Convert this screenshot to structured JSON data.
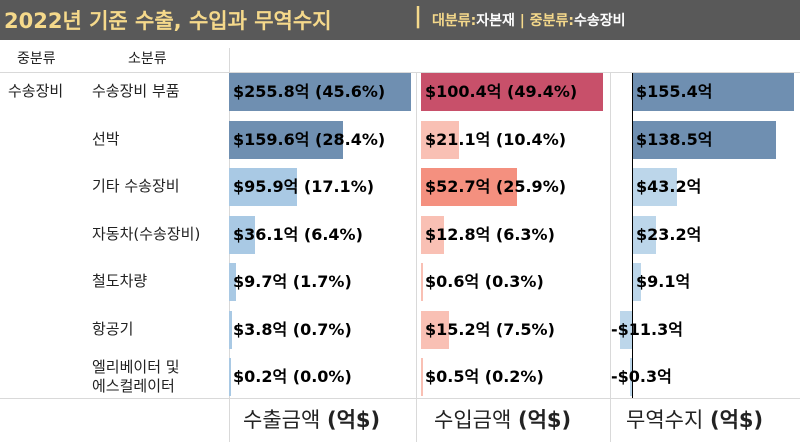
{
  "title": {
    "main": "2022년 기준 수출, 수입과 무역수지",
    "separator": "|",
    "major_key": "대분류:",
    "major_value": "자본재",
    "sub_separator": "|",
    "mid_key": "중분류:",
    "mid_value": "수송장비"
  },
  "headers": {
    "mid": "중분류",
    "sub": "소분류"
  },
  "colors": {
    "title_bg": "#595959",
    "title_text": "#f5d98b",
    "export_dark": "#6f8fb1",
    "export_light": "#a9c9e4",
    "import_dark": "#c8506a",
    "import_mid": "#f4907f",
    "import_light": "#f9c0b4",
    "trade_dark": "#6f8fb1",
    "trade_light": "#bcd6ea"
  },
  "chart_data": {
    "type": "bar",
    "mid_category": "수송장비",
    "categories": [
      "수송장비 부품",
      "선박",
      "기타 수송장비",
      "자동차(수송장비)",
      "철도차량",
      "항공기",
      "엘리베이터 및 에스컬레이터"
    ],
    "category_lines": [
      [
        "수송장비 부품"
      ],
      [
        "선박"
      ],
      [
        "기타 수송장비"
      ],
      [
        "자동차(수송장비)"
      ],
      [
        "철도차량"
      ],
      [
        "항공기"
      ],
      [
        "엘리베이터 및",
        "에스컬레이터"
      ]
    ],
    "series": [
      {
        "name": "수출금액 (억$)",
        "values": [
          255.8,
          159.6,
          95.9,
          36.1,
          9.7,
          3.8,
          0.2
        ],
        "labels": [
          "$255.8억 (45.6%)",
          "$159.6억 (28.4%)",
          "$95.9억 (17.1%)",
          "$36.1억 (6.4%)",
          "$9.7억 (1.7%)",
          "$3.8억 (0.7%)",
          "$0.2억 (0.0%)"
        ]
      },
      {
        "name": "수입금액 (억$)",
        "values": [
          100.4,
          21.1,
          52.7,
          12.8,
          0.6,
          15.2,
          0.5
        ],
        "labels": [
          "$100.4억 (49.4%)",
          "$21.1억 (10.4%)",
          "$52.7억 (25.9%)",
          "$12.8억 (6.3%)",
          "$0.6억 (0.3%)",
          "$15.2억 (7.5%)",
          "$0.5억 (0.2%)"
        ]
      },
      {
        "name": "무역수지 (억$)",
        "values": [
          155.4,
          138.5,
          43.2,
          23.2,
          9.1,
          -11.3,
          -0.3
        ],
        "labels": [
          "$155.4억",
          "$138.5억",
          "$43.2억",
          "$23.2억",
          "$9.1억",
          "-$11.3억",
          "-$0.3억"
        ]
      }
    ],
    "axis_titles": [
      {
        "text": "수출금액 ",
        "bold": "(억$)"
      },
      {
        "text": "수입금액 ",
        "bold": "(억$)"
      },
      {
        "text": "무역수지 ",
        "bold": "(억$)"
      }
    ]
  }
}
